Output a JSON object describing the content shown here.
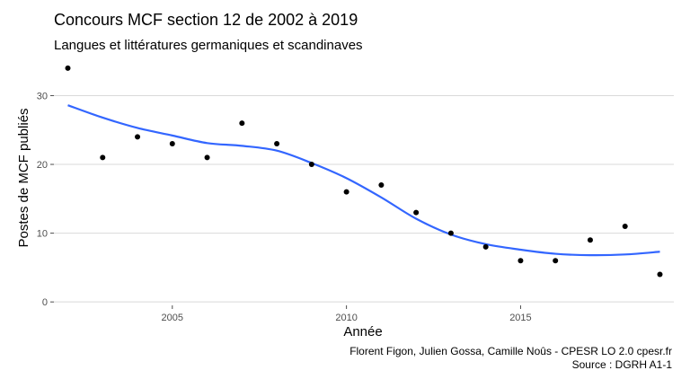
{
  "chart_data": {
    "type": "scatter",
    "title": "Concours MCF section 12 de 2002 à 2019",
    "subtitle": "Langues et littératures germaniques et scandinaves",
    "xlabel": "Année",
    "ylabel": "Postes de MCF publiés",
    "xlim": [
      2001.6,
      2019.4
    ],
    "ylim": [
      -0.5,
      34.5
    ],
    "x_ticks": [
      2005,
      2010,
      2015
    ],
    "y_ticks": [
      0,
      10,
      20,
      30
    ],
    "grid": true,
    "points": {
      "x": [
        2002,
        2003,
        2004,
        2005,
        2006,
        2007,
        2008,
        2009,
        2010,
        2011,
        2012,
        2013,
        2014,
        2015,
        2016,
        2017,
        2018,
        2019
      ],
      "y": [
        34,
        21,
        24,
        23,
        21,
        26,
        23,
        20,
        16,
        17,
        13,
        10,
        8,
        6,
        6,
        9,
        11,
        4
      ]
    },
    "smooth": {
      "color": "#3366ff",
      "x": [
        2002,
        2003,
        2004,
        2005,
        2006,
        2007,
        2008,
        2009,
        2010,
        2011,
        2012,
        2013,
        2014,
        2015,
        2016,
        2017,
        2018,
        2019
      ],
      "y": [
        28.6,
        26.8,
        25.3,
        24.2,
        23.1,
        22.7,
        22.0,
        20.2,
        18.0,
        15.2,
        12.1,
        9.8,
        8.4,
        7.6,
        7.0,
        6.8,
        6.9,
        7.3
      ]
    },
    "caption": [
      "Florent Figon, Julien Gossa, Camille Noûs - CPESR LO 2.0 cpesr.fr",
      "Source : DGRH A1-1"
    ]
  }
}
